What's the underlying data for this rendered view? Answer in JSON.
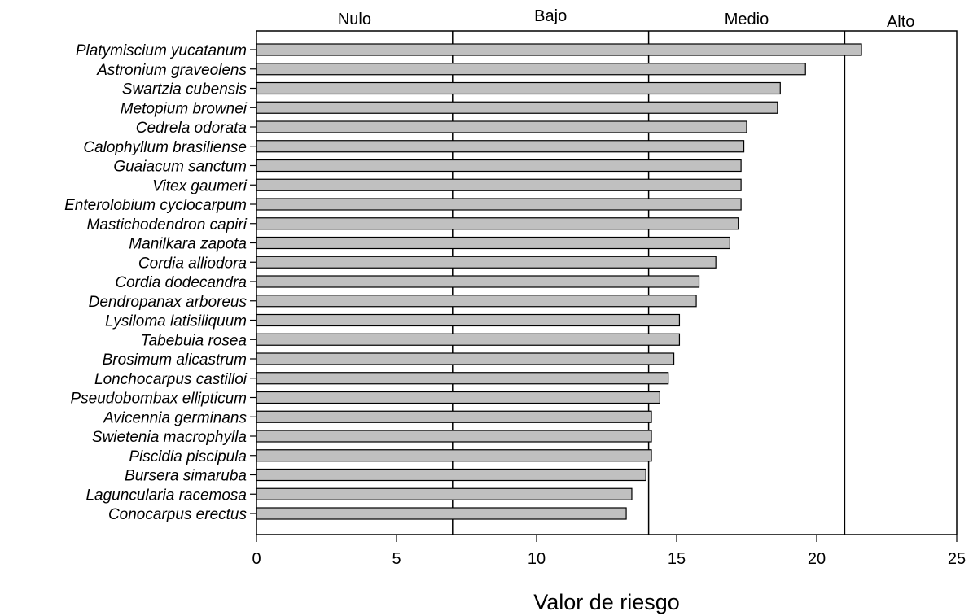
{
  "chart_data": {
    "type": "bar",
    "orientation": "horizontal",
    "xlabel": "Valor de riesgo",
    "ylabel": "",
    "xlim": [
      0,
      25
    ],
    "xticks": [
      0,
      5,
      10,
      15,
      20,
      25
    ],
    "grid": false,
    "bar_color": "#c0c0c0",
    "categories": [
      "Platymiscium yucatanum",
      "Astronium graveolens",
      "Swartzia cubensis",
      "Metopium brownei",
      "Cedrela odorata",
      "Calophyllum brasiliense",
      "Guaiacum sanctum",
      "Vitex gaumeri",
      "Enterolobium cyclocarpum",
      "Mastichodendron capiri",
      "Manilkara zapota",
      "Cordia alliodora",
      "Cordia dodecandra",
      "Dendropanax arboreus",
      "Lysiloma latisiliquum",
      "Tabebuia rosea",
      "Brosimum alicastrum",
      "Lonchocarpus castilloi",
      "Pseudobombax ellipticum",
      "Avicennia germinans",
      "Swietenia macrophylla",
      "Piscidia piscipula",
      "Bursera simaruba",
      "Laguncularia racemosa",
      "Conocarpus erectus"
    ],
    "values": [
      21.6,
      19.6,
      18.7,
      18.6,
      17.5,
      17.4,
      17.3,
      17.3,
      17.3,
      17.2,
      16.9,
      16.4,
      15.8,
      15.7,
      15.1,
      15.1,
      14.9,
      14.7,
      14.4,
      14.1,
      14.1,
      14.1,
      13.9,
      13.4,
      13.2
    ],
    "zone_boundaries": [
      7,
      14,
      21
    ],
    "zones": [
      {
        "label": "Nulo",
        "from": 0,
        "to": 7
      },
      {
        "label": "Bajo",
        "from": 7,
        "to": 14
      },
      {
        "label": "Medio",
        "from": 14,
        "to": 21
      },
      {
        "label": "Alto",
        "from": 21,
        "to": 25
      }
    ]
  }
}
